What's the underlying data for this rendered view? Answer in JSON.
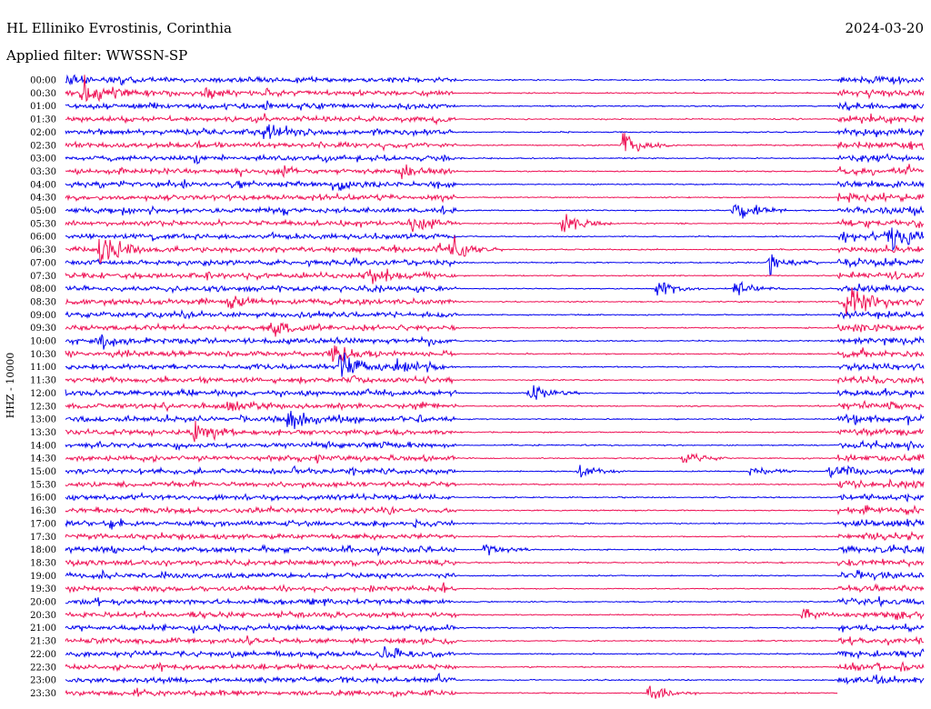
{
  "header": {
    "station": "HL Elliniko Evrostinis, Corinthia",
    "date": "2024-03-20",
    "filter": "Applied filter: WWSSN-SP"
  },
  "chart_data": {
    "type": "seismogram",
    "ylabel": "HHZ - 10000",
    "trace_colors": [
      "#0000ee",
      "#ee1155"
    ],
    "rows": [
      {
        "label": "00:00",
        "events": [
          {
            "t": 0.0,
            "amp": 0.3
          }
        ]
      },
      {
        "label": "00:30",
        "events": [
          {
            "t": 0.02,
            "amp": 1.0
          },
          {
            "t": 0.16,
            "amp": 0.3
          }
        ]
      },
      {
        "label": "01:00",
        "events": []
      },
      {
        "label": "01:30",
        "events": []
      },
      {
        "label": "02:00",
        "events": [
          {
            "t": 0.23,
            "amp": 0.5
          }
        ]
      },
      {
        "label": "02:30",
        "events": [
          {
            "t": 0.65,
            "amp": 0.8
          }
        ]
      },
      {
        "label": "03:00",
        "events": []
      },
      {
        "label": "03:30",
        "events": [
          {
            "t": 0.39,
            "amp": 0.4
          }
        ]
      },
      {
        "label": "04:00",
        "events": [
          {
            "t": 0.31,
            "amp": 0.3
          }
        ]
      },
      {
        "label": "04:30",
        "events": []
      },
      {
        "label": "05:00",
        "events": [
          {
            "t": 0.78,
            "amp": 1.0
          }
        ]
      },
      {
        "label": "05:30",
        "events": [
          {
            "t": 0.4,
            "amp": 0.5
          },
          {
            "t": 0.58,
            "amp": 0.8
          }
        ]
      },
      {
        "label": "06:00",
        "events": [
          {
            "t": 0.96,
            "amp": 1.0
          }
        ]
      },
      {
        "label": "06:30",
        "events": [
          {
            "t": 0.04,
            "amp": 1.0
          },
          {
            "t": 0.45,
            "amp": 1.0
          }
        ]
      },
      {
        "label": "07:00",
        "events": [
          {
            "t": 0.82,
            "amp": 0.8
          }
        ]
      },
      {
        "label": "07:30",
        "events": [
          {
            "t": 0.35,
            "amp": 0.5
          }
        ]
      },
      {
        "label": "08:00",
        "events": [
          {
            "t": 0.69,
            "amp": 0.5
          },
          {
            "t": 0.78,
            "amp": 0.5
          }
        ]
      },
      {
        "label": "08:30",
        "events": [
          {
            "t": 0.19,
            "amp": 0.5
          },
          {
            "t": 0.91,
            "amp": 0.9
          }
        ]
      },
      {
        "label": "09:00",
        "events": []
      },
      {
        "label": "09:30",
        "events": [
          {
            "t": 0.24,
            "amp": 0.5
          }
        ]
      },
      {
        "label": "10:00",
        "events": [
          {
            "t": 0.04,
            "amp": 0.4
          }
        ]
      },
      {
        "label": "10:30",
        "events": [
          {
            "t": 0.31,
            "amp": 0.5
          }
        ]
      },
      {
        "label": "11:00",
        "events": [
          {
            "t": 0.32,
            "amp": 0.9
          },
          {
            "t": 0.38,
            "amp": 0.5
          }
        ]
      },
      {
        "label": "11:30",
        "events": []
      },
      {
        "label": "12:00",
        "events": [
          {
            "t": 0.54,
            "amp": 0.6
          }
        ]
      },
      {
        "label": "12:30",
        "events": [
          {
            "t": 0.19,
            "amp": 0.4
          }
        ]
      },
      {
        "label": "13:00",
        "events": [
          {
            "t": 0.26,
            "amp": 0.6
          }
        ]
      },
      {
        "label": "13:30",
        "events": [
          {
            "t": 0.15,
            "amp": 0.9
          }
        ]
      },
      {
        "label": "14:00",
        "events": []
      },
      {
        "label": "14:30",
        "events": [
          {
            "t": 0.72,
            "amp": 0.5
          }
        ]
      },
      {
        "label": "15:00",
        "events": [
          {
            "t": 0.6,
            "amp": 0.4
          },
          {
            "t": 0.8,
            "amp": 0.4
          },
          {
            "t": 0.89,
            "amp": 0.4
          }
        ]
      },
      {
        "label": "15:30",
        "events": []
      },
      {
        "label": "16:00",
        "events": []
      },
      {
        "label": "16:30",
        "events": []
      },
      {
        "label": "17:00",
        "events": []
      },
      {
        "label": "17:30",
        "events": []
      },
      {
        "label": "18:00",
        "events": [
          {
            "t": 0.49,
            "amp": 0.5
          }
        ]
      },
      {
        "label": "18:30",
        "events": []
      },
      {
        "label": "19:00",
        "events": []
      },
      {
        "label": "19:30",
        "events": []
      },
      {
        "label": "20:00",
        "events": []
      },
      {
        "label": "20:30",
        "events": [
          {
            "t": 0.86,
            "amp": 0.4
          }
        ]
      },
      {
        "label": "21:00",
        "events": []
      },
      {
        "label": "21:30",
        "events": []
      },
      {
        "label": "22:00",
        "events": [
          {
            "t": 0.37,
            "amp": 0.4
          }
        ]
      },
      {
        "label": "22:30",
        "events": []
      },
      {
        "label": "23:00",
        "events": []
      },
      {
        "label": "23:30",
        "events": [
          {
            "t": 0.68,
            "amp": 0.5
          }
        ]
      }
    ]
  }
}
